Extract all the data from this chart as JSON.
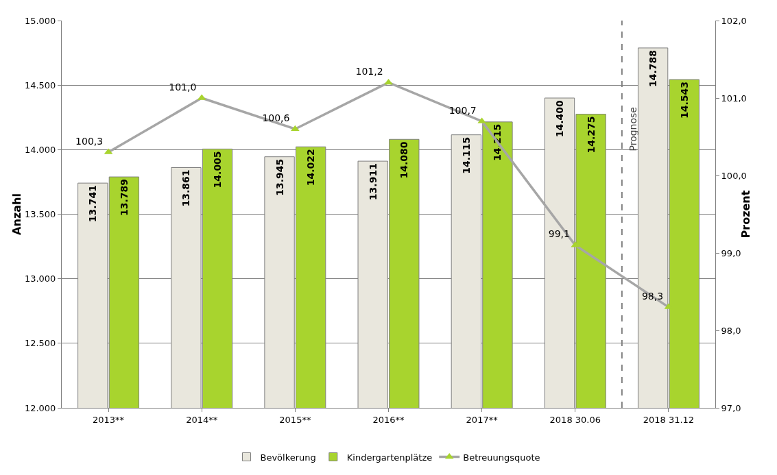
{
  "chart_data": {
    "type": "bar",
    "categories": [
      "2013**",
      "2014**",
      "2015**",
      "2016**",
      "2017**",
      "2018 30.06",
      "2018 31.12"
    ],
    "series": [
      {
        "name": "Bevölkerung",
        "color": "#e9e7dd",
        "values": [
          13741,
          13861,
          13945,
          13911,
          14115,
          14400,
          14788
        ],
        "value_labels": [
          "13.741",
          "13.861",
          "13.945",
          "13.911",
          "14.115",
          "14.400",
          "14.788"
        ]
      },
      {
        "name": "Kindergartenplätze",
        "color": "#a8d42e",
        "values": [
          13789,
          14005,
          14022,
          14080,
          14215,
          14275,
          14543
        ],
        "value_labels": [
          "13.789",
          "14.005",
          "14.022",
          "14.080",
          "14.215",
          "14.275",
          "14.543"
        ]
      },
      {
        "name": "Betreuungsquote",
        "type": "line",
        "axis": "y2",
        "color": "#a6a6a6",
        "colors": [
          "#a8d42e",
          "#a8d42e",
          "#a8d42e",
          "#a8d42e",
          "#a8d42e",
          "#a8d42e",
          "#a8d42e"
        ],
        "values": [
          100.3,
          101.0,
          100.6,
          101.2,
          100.7,
          99.1,
          98.3
        ],
        "value_labels": [
          "100,3",
          "101,0",
          "100,6",
          "101,2",
          "100,7",
          "99,1",
          "98,3"
        ]
      }
    ],
    "ylabel": "Anzahl",
    "y2label": "Prozent",
    "ylim": [
      12000,
      15000
    ],
    "yticks": [
      {
        "value": 12000,
        "label": "12.000"
      },
      {
        "value": 12500,
        "label": "12.500"
      },
      {
        "value": 13000,
        "label": "13.000"
      },
      {
        "value": 13500,
        "label": "13.500"
      },
      {
        "value": 14000,
        "label": "14.000"
      },
      {
        "value": 14500,
        "label": "14.500"
      },
      {
        "value": 15000,
        "label": "15.000"
      }
    ],
    "y2lim": [
      97,
      102
    ],
    "y2ticks": [
      {
        "value": 97,
        "label": "97,0"
      },
      {
        "value": 98,
        "label": "98,0"
      },
      {
        "value": 99,
        "label": "99,0"
      },
      {
        "value": 100,
        "label": "100,0"
      },
      {
        "value": 101,
        "label": "101,0"
      },
      {
        "value": 102,
        "label": "102,0"
      }
    ],
    "ref_lines": [
      {
        "axis": "x",
        "value": "2018 31.12",
        "label": "Prognose",
        "line_style": "dashed",
        "color": "#808080"
      }
    ],
    "grid": "y",
    "legend": "bottom",
    "marker": "triangle"
  }
}
